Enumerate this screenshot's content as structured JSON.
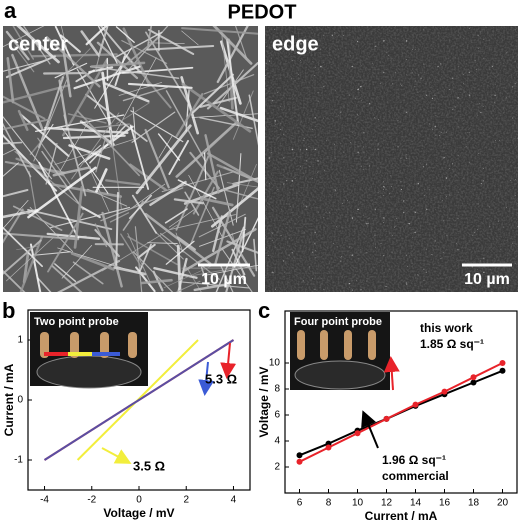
{
  "figure": {
    "title": "PEDOT",
    "panel_labels": [
      "a",
      "b",
      "c"
    ],
    "images": [
      {
        "label": "center",
        "scale": "10 µm"
      },
      {
        "label": "edge",
        "scale": "10 µm"
      }
    ]
  },
  "chart_data": [
    {
      "type": "line",
      "inset_label": "Two point probe",
      "xlabel": "Voltage / mV",
      "ylabel": "Current / mA",
      "xlim": [
        -4.7,
        4.7
      ],
      "ylim": [
        -1.5,
        1.5
      ],
      "xticks": [
        -4,
        -2,
        0,
        2,
        4
      ],
      "yticks": [
        -1,
        0,
        1
      ],
      "series": [
        {
          "color": "#e8232a",
          "x": [
            -4,
            4
          ],
          "values": [
            -1,
            1
          ]
        },
        {
          "color": "#f2ee3c",
          "x": [
            -2.6,
            2.5
          ],
          "values": [
            -1,
            1
          ]
        },
        {
          "color": "#5a4fa3",
          "x": [
            -4,
            4
          ],
          "values": [
            -1,
            1
          ]
        }
      ],
      "annotations": [
        "5.3 Ω",
        "3.5 Ω"
      ]
    },
    {
      "type": "line",
      "inset_label": "Four point probe",
      "xlabel": "Current / mA",
      "ylabel": "Voltage / mV",
      "xlim": [
        5,
        21
      ],
      "ylim": [
        0,
        14
      ],
      "xticks": [
        6,
        8,
        10,
        12,
        14,
        16,
        18,
        20
      ],
      "yticks": [
        2,
        4,
        6,
        8,
        10
      ],
      "series": [
        {
          "color": "#000000",
          "x": [
            6,
            8,
            10,
            12,
            14,
            16,
            18,
            20
          ],
          "values": [
            2.9,
            3.8,
            4.8,
            5.7,
            6.7,
            7.6,
            8.5,
            9.4
          ]
        },
        {
          "color": "#e8232a",
          "x": [
            6,
            8,
            10,
            12,
            14,
            16,
            18,
            20
          ],
          "values": [
            2.4,
            3.5,
            4.6,
            5.7,
            6.8,
            7.8,
            8.9,
            10.0
          ]
        }
      ],
      "annotations": [
        "this work",
        "1.85 Ω sq⁻¹",
        "1.96 Ω sq⁻¹",
        "commercial"
      ]
    }
  ]
}
